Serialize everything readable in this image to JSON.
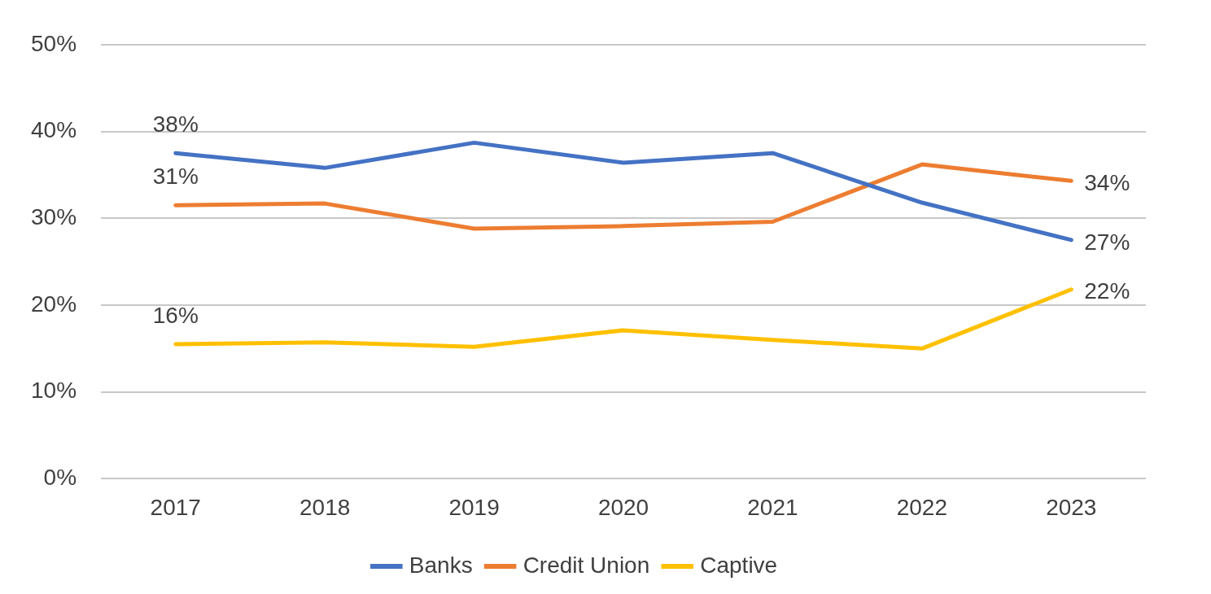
{
  "chart_data": {
    "type": "line",
    "categories": [
      "2017",
      "2018",
      "2019",
      "2020",
      "2021",
      "2022",
      "2023"
    ],
    "series": [
      {
        "name": "Banks",
        "color": "#4472c4",
        "values": [
          37.5,
          35.8,
          38.7,
          36.4,
          37.5,
          31.8,
          27.5
        ],
        "value_labels": [
          "38%",
          null,
          null,
          null,
          null,
          null,
          "27%"
        ]
      },
      {
        "name": "Credit Union",
        "color": "#ed7d31",
        "values": [
          31.5,
          31.7,
          28.8,
          29.1,
          29.6,
          36.2,
          34.3
        ],
        "value_labels": [
          "31%",
          null,
          null,
          null,
          null,
          null,
          "34%"
        ]
      },
      {
        "name": "Captive",
        "color": "#ffc000",
        "values": [
          15.5,
          15.7,
          15.2,
          17.1,
          16.0,
          15.0,
          21.8
        ],
        "value_labels": [
          "16%",
          null,
          null,
          null,
          null,
          null,
          "22%"
        ]
      }
    ],
    "ylim": [
      0,
      50
    ],
    "yticks": [
      {
        "value": 0,
        "label": "0%"
      },
      {
        "value": 10,
        "label": "10%"
      },
      {
        "value": 20,
        "label": "20%"
      },
      {
        "value": 30,
        "label": "30%"
      },
      {
        "value": 40,
        "label": "40%"
      },
      {
        "value": 50,
        "label": "50%"
      }
    ],
    "grid": "y",
    "legend": "bottom",
    "marker": "none",
    "line_style": "solid"
  }
}
